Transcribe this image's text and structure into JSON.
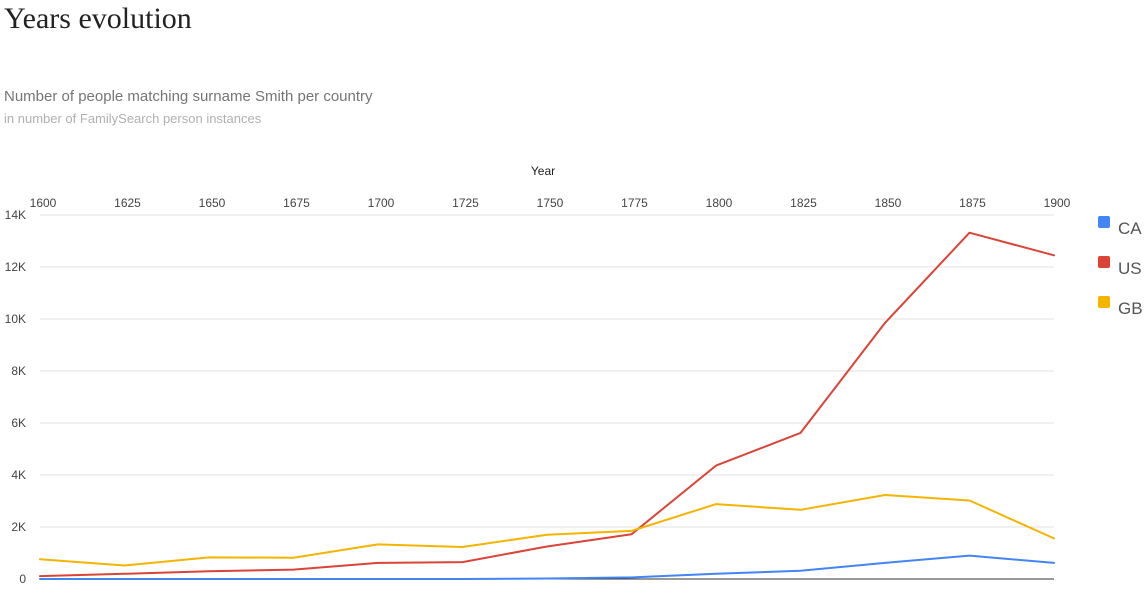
{
  "page": {
    "title": "Years evolution"
  },
  "chart_data": {
    "type": "line",
    "title": "Number of people matching surname Smith per country",
    "subtitle": "in number of FamilySearch person instances",
    "xlabel": "Year",
    "ylabel": "",
    "x": [
      1600,
      1625,
      1650,
      1675,
      1700,
      1725,
      1750,
      1775,
      1800,
      1825,
      1850,
      1875,
      1900
    ],
    "x_tick_labels": [
      "1600",
      "1625",
      "1650",
      "1675",
      "1700",
      "1725",
      "1750",
      "1775",
      "1800",
      "1825",
      "1850",
      "1875",
      "1900"
    ],
    "ylim": [
      0,
      14000
    ],
    "y_ticks": [
      0,
      2000,
      4000,
      6000,
      8000,
      10000,
      12000,
      14000
    ],
    "y_tick_labels": [
      "0",
      "2K",
      "4K",
      "6K",
      "8K",
      "10K",
      "12K",
      "14K"
    ],
    "grid": true,
    "x_axis_position": "top",
    "legend_position": "right",
    "series": [
      {
        "name": "CA",
        "color": "#4285f4",
        "values": [
          0,
          0,
          0,
          0,
          0,
          0,
          20,
          60,
          200,
          320,
          620,
          900,
          620
        ]
      },
      {
        "name": "US",
        "color": "#db4437",
        "values": [
          110,
          200,
          300,
          360,
          620,
          650,
          1250,
          1720,
          4360,
          5620,
          9850,
          13320,
          12450
        ]
      },
      {
        "name": "GB",
        "color": "#f4b400",
        "values": [
          760,
          520,
          830,
          820,
          1330,
          1230,
          1700,
          1850,
          2880,
          2660,
          3230,
          3020,
          1560
        ]
      }
    ]
  }
}
